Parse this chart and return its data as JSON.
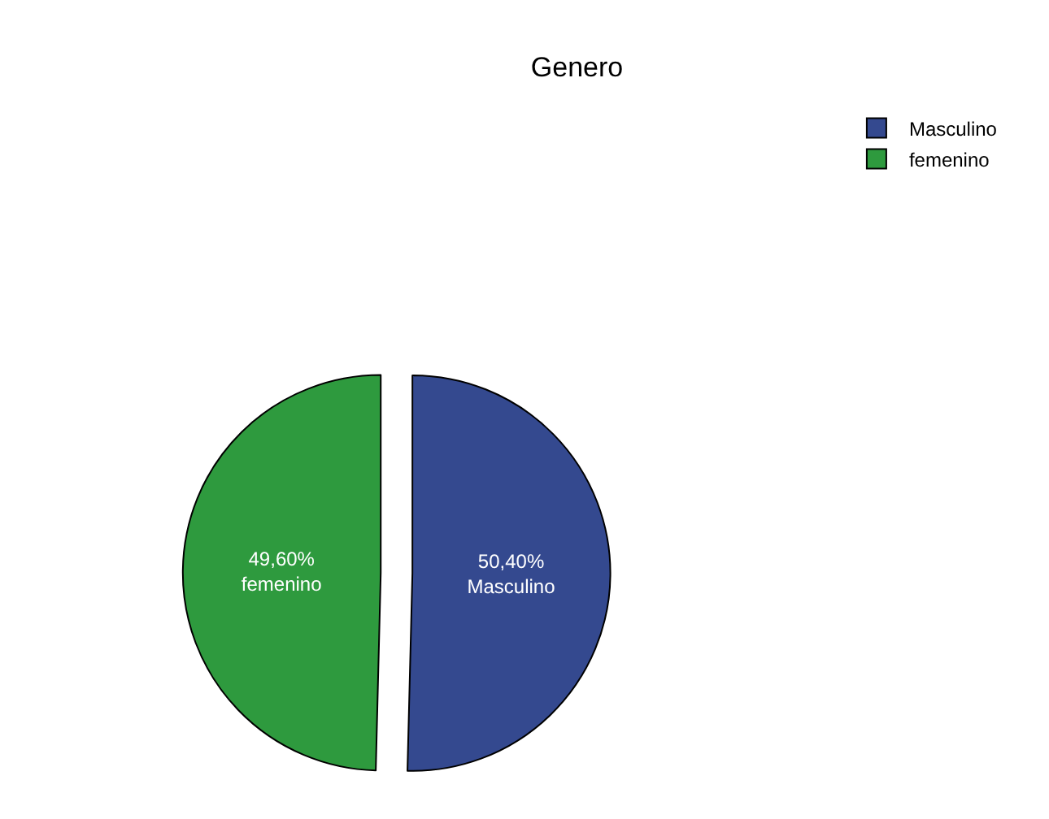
{
  "chart_data": {
    "type": "pie",
    "title": "Genero",
    "categories": [
      "Masculino",
      "femenino"
    ],
    "values": [
      50.4,
      49.6
    ],
    "value_labels": [
      "50,40%",
      "49,60%"
    ],
    "colors": [
      "#34498f",
      "#2e9a3e"
    ],
    "legend": "top right"
  }
}
